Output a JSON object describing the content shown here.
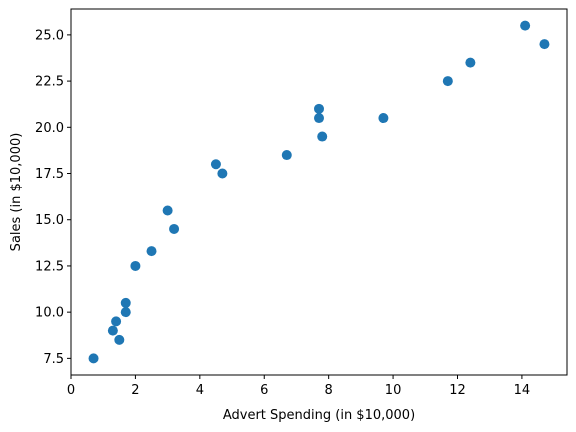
{
  "chart_data": {
    "type": "scatter",
    "title": "",
    "xlabel": "Advert Spending (in $10,000)",
    "ylabel": "Sales (in $10,000)",
    "xlim": [
      0,
      15.4
    ],
    "ylim": [
      6.6,
      26.4
    ],
    "xticks": [
      0,
      2,
      4,
      6,
      8,
      10,
      12,
      14
    ],
    "xtick_labels": [
      "0",
      "2",
      "4",
      "6",
      "8",
      "10",
      "12",
      "14"
    ],
    "yticks": [
      7.5,
      10.0,
      12.5,
      15.0,
      17.5,
      20.0,
      22.5,
      25.0
    ],
    "ytick_labels": [
      "7.5",
      "10.0",
      "12.5",
      "15.0",
      "17.5",
      "20.0",
      "22.5",
      "25.0"
    ],
    "grid": false,
    "legend": false,
    "marker_color": "#1f77b4",
    "points": [
      {
        "x": 0.7,
        "y": 7.5
      },
      {
        "x": 1.3,
        "y": 9.0
      },
      {
        "x": 1.4,
        "y": 9.5
      },
      {
        "x": 1.5,
        "y": 8.5
      },
      {
        "x": 1.7,
        "y": 10.0
      },
      {
        "x": 1.7,
        "y": 10.5
      },
      {
        "x": 2.0,
        "y": 12.5
      },
      {
        "x": 2.5,
        "y": 13.3
      },
      {
        "x": 3.0,
        "y": 15.5
      },
      {
        "x": 3.2,
        "y": 14.5
      },
      {
        "x": 4.5,
        "y": 18.0
      },
      {
        "x": 4.7,
        "y": 17.5
      },
      {
        "x": 6.7,
        "y": 18.5
      },
      {
        "x": 7.7,
        "y": 21.0
      },
      {
        "x": 7.7,
        "y": 20.5
      },
      {
        "x": 7.8,
        "y": 19.5
      },
      {
        "x": 9.7,
        "y": 20.5
      },
      {
        "x": 11.7,
        "y": 22.5
      },
      {
        "x": 12.4,
        "y": 23.5
      },
      {
        "x": 14.1,
        "y": 25.5
      },
      {
        "x": 14.7,
        "y": 24.5
      }
    ]
  }
}
